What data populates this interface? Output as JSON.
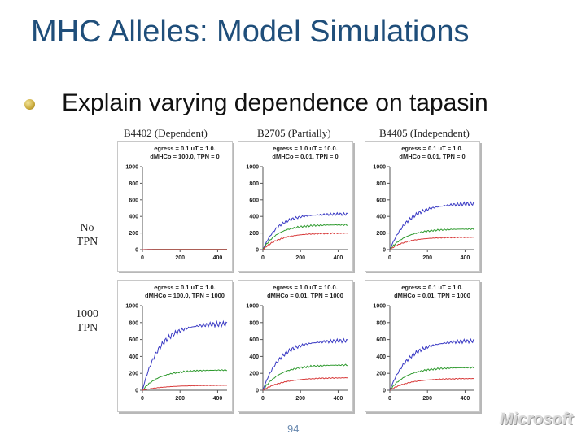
{
  "slide": {
    "title": "MHC Alleles: Model Simulations",
    "bullet": "Explain varying dependence on tapasin",
    "columns": [
      "B4402 (Dependent)",
      "B2705 (Partially)",
      "B4405 (Independent)"
    ],
    "rows": [
      {
        "line1": "No",
        "line2": "TPN"
      },
      {
        "line1": "1000",
        "line2": "TPN"
      }
    ],
    "page_number": "94",
    "logo_text": "Microsoft",
    "bullet_color": "#c9a93a",
    "title_color": "#1f4e7a"
  },
  "chart_data": [
    {
      "type": "line",
      "panel": "B4402 / No TPN",
      "title": [
        "egress = 0.1 uT = 1.0.",
        "dMHCo = 100.0, TPN = 0"
      ],
      "xlim": [
        0,
        450
      ],
      "ylim": [
        0,
        1000
      ],
      "x_ticks": [
        0,
        200,
        400
      ],
      "y_ticks": [
        0,
        200,
        400,
        600,
        800,
        1000
      ],
      "series": [
        {
          "color": "#3b3bc4",
          "plateau": 3,
          "tau": 40
        },
        {
          "color": "#2e9a2e",
          "plateau": 2,
          "tau": 40
        },
        {
          "color": "#d83a3a",
          "plateau": 1,
          "tau": 40
        }
      ]
    },
    {
      "type": "line",
      "panel": "B2705 / No TPN",
      "title": [
        "egress = 1.0 uT = 10.0.",
        "dMHCo = 0.01, TPN = 0"
      ],
      "xlim": [
        0,
        450
      ],
      "ylim": [
        0,
        1000
      ],
      "x_ticks": [
        0,
        200,
        400
      ],
      "y_ticks": [
        0,
        200,
        400,
        600,
        800,
        1000
      ],
      "series": [
        {
          "color": "#3b3bc4",
          "plateau": 430,
          "tau": 80
        },
        {
          "color": "#2e9a2e",
          "plateau": 300,
          "tau": 80
        },
        {
          "color": "#d83a3a",
          "plateau": 200,
          "tau": 90
        }
      ]
    },
    {
      "type": "line",
      "panel": "B4405 / No TPN",
      "title": [
        "egress = 0.1 uT = 1.0.",
        "dMHCo = 0.01, TPN = 0"
      ],
      "xlim": [
        0,
        450
      ],
      "ylim": [
        0,
        1000
      ],
      "x_ticks": [
        0,
        200,
        400
      ],
      "y_ticks": [
        0,
        200,
        400,
        600,
        800,
        1000
      ],
      "series": [
        {
          "color": "#3b3bc4",
          "plateau": 560,
          "tau": 100
        },
        {
          "color": "#2e9a2e",
          "plateau": 250,
          "tau": 90
        },
        {
          "color": "#d83a3a",
          "plateau": 150,
          "tau": 90
        }
      ]
    },
    {
      "type": "line",
      "panel": "B4402 / 1000 TPN",
      "title": [
        "egress = 0.1 uT = 1.0.",
        "dMHCo = 100.0, TPN = 1000"
      ],
      "xlim": [
        0,
        450
      ],
      "ylim": [
        0,
        1000
      ],
      "x_ticks": [
        0,
        200,
        400
      ],
      "y_ticks": [
        0,
        200,
        400,
        600,
        800,
        1000
      ],
      "series": [
        {
          "color": "#3b3bc4",
          "plateau": 790,
          "tau": 90
        },
        {
          "color": "#2e9a2e",
          "plateau": 240,
          "tau": 90
        },
        {
          "color": "#d83a3a",
          "plateau": 60,
          "tau": 120
        }
      ]
    },
    {
      "type": "line",
      "panel": "B2705 / 1000 TPN",
      "title": [
        "egress = 1.0 uT = 10.0.",
        "dMHCo = 0.01, TPN = 1000"
      ],
      "xlim": [
        0,
        450
      ],
      "ylim": [
        0,
        1000
      ],
      "x_ticks": [
        0,
        200,
        400
      ],
      "y_ticks": [
        0,
        200,
        400,
        600,
        800,
        1000
      ],
      "series": [
        {
          "color": "#3b3bc4",
          "plateau": 590,
          "tau": 90
        },
        {
          "color": "#2e9a2e",
          "plateau": 300,
          "tau": 90
        },
        {
          "color": "#d83a3a",
          "plateau": 150,
          "tau": 110
        }
      ]
    },
    {
      "type": "line",
      "panel": "B4405 / 1000 TPN",
      "title": [
        "egress = 0.1 uT = 1.0.",
        "dMHCo = 0.01, TPN = 1000"
      ],
      "xlim": [
        0,
        450
      ],
      "ylim": [
        0,
        1000
      ],
      "x_ticks": [
        0,
        200,
        400
      ],
      "y_ticks": [
        0,
        200,
        400,
        600,
        800,
        1000
      ],
      "series": [
        {
          "color": "#3b3bc4",
          "plateau": 590,
          "tau": 100
        },
        {
          "color": "#2e9a2e",
          "plateau": 270,
          "tau": 90
        },
        {
          "color": "#d83a3a",
          "plateau": 140,
          "tau": 100
        }
      ]
    }
  ]
}
